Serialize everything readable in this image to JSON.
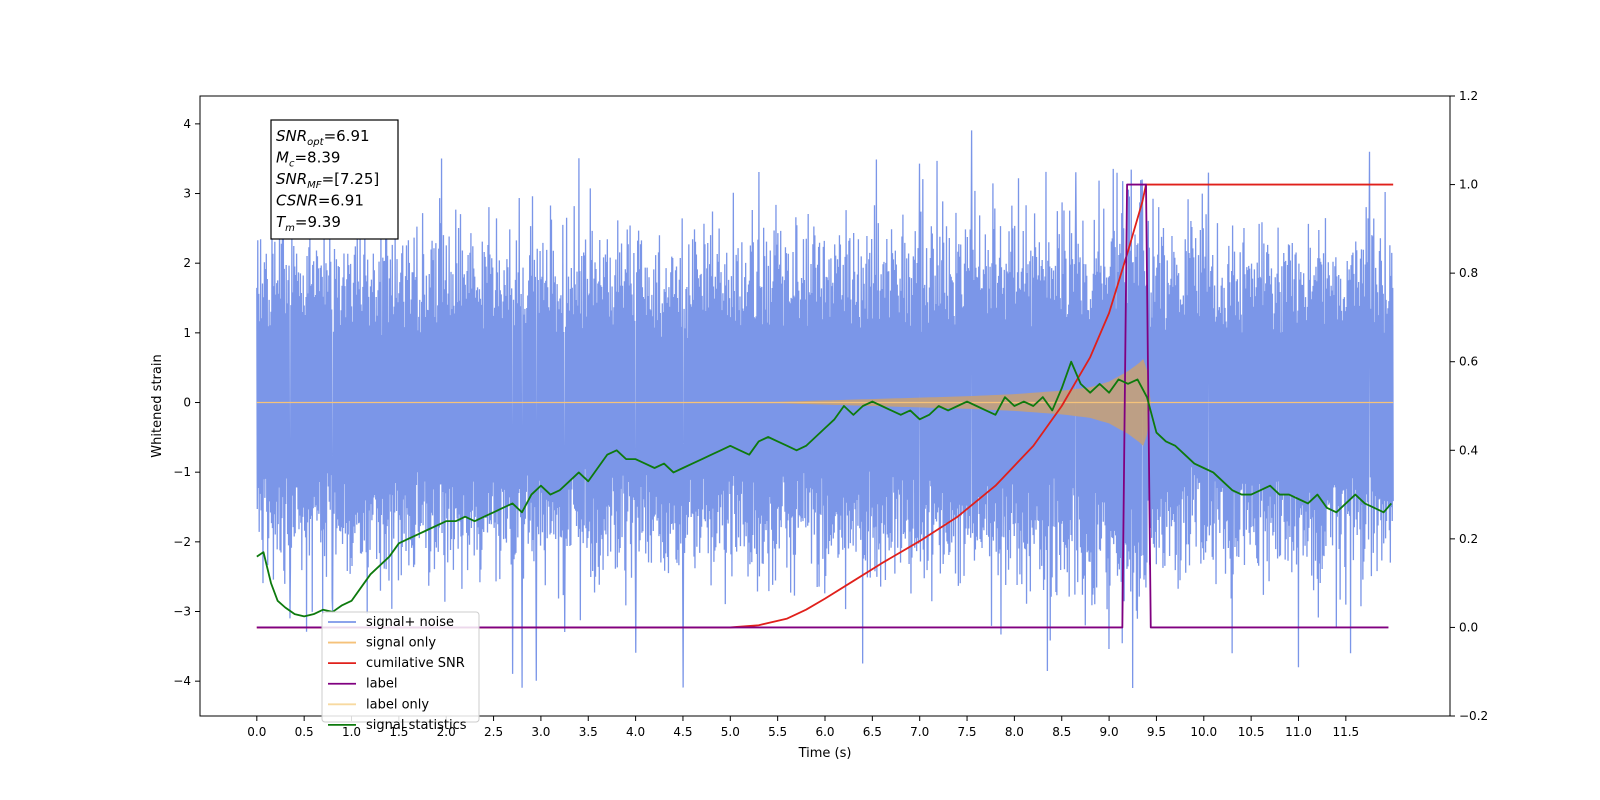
{
  "chart_data": {
    "type": "line",
    "xlabel": "Time (s)",
    "ylabel_left": "Whitened strain",
    "ylabel_right": "",
    "xlim": [
      -0.6,
      12.6
    ],
    "ylim_left": [
      -4.5,
      4.4
    ],
    "ylim_right": [
      -0.2,
      1.2
    ],
    "x_ticks": [
      "0.0",
      "0.5",
      "1.0",
      "1.5",
      "2.0",
      "2.5",
      "3.0",
      "3.5",
      "4.0",
      "4.5",
      "5.0",
      "5.5",
      "6.0",
      "6.5",
      "7.0",
      "7.5",
      "8.0",
      "8.5",
      "9.0",
      "9.5",
      "10.0",
      "10.5",
      "11.0",
      "11.5"
    ],
    "y_ticks_left": [
      "4",
      "3",
      "2",
      "1",
      "0",
      "−1",
      "−2",
      "−3",
      "−4"
    ],
    "y_ticks_right": [
      "1.2",
      "1.0",
      "0.8",
      "0.6",
      "0.4",
      "0.2",
      "0.0",
      "−0.2"
    ],
    "grid": false,
    "legend_location": "lower-left",
    "annotation": {
      "lines": [
        {
          "base": "SNR",
          "sub": "opt",
          "value": "=6.91"
        },
        {
          "base": "M",
          "sub": "c",
          "value": "=8.39"
        },
        {
          "base": "SNR",
          "sub": "MF",
          "value": "=[7.25]"
        },
        {
          "base": "CSNR",
          "sub": "",
          "value": "=6.91"
        },
        {
          "base": "T",
          "sub": "m",
          "value": "=9.39"
        }
      ]
    },
    "series": [
      {
        "name": "signal+ noise",
        "axis": "left",
        "color": "#7b96e8",
        "style": "noise",
        "x_range": [
          0.0,
          12.0
        ],
        "amplitude_typical": 1.8,
        "spikes": [
          [
            0.35,
            -3.1
          ],
          [
            0.8,
            -3.0
          ],
          [
            1.95,
            3.5
          ],
          [
            2.7,
            -3.9
          ],
          [
            2.8,
            -4.1
          ],
          [
            2.95,
            -4.0
          ],
          [
            3.25,
            -3.3
          ],
          [
            3.4,
            3.5
          ],
          [
            4.0,
            -3.6
          ],
          [
            4.5,
            -4.1
          ],
          [
            5.3,
            3.3
          ],
          [
            6.4,
            -3.7
          ],
          [
            7.0,
            3.5
          ],
          [
            7.55,
            4.0
          ],
          [
            8.35,
            -3.7
          ],
          [
            8.65,
            3.5
          ],
          [
            9.25,
            -3.6
          ],
          [
            9.35,
            3.8
          ],
          [
            10.05,
            3.3
          ],
          [
            10.3,
            -3.6
          ],
          [
            11.0,
            -3.8
          ],
          [
            11.55,
            -3.6
          ],
          [
            11.75,
            3.6
          ]
        ]
      },
      {
        "name": "signal only",
        "axis": "left",
        "color": "#f5c27a",
        "fill": "#c4a07a",
        "style": "chirp",
        "envelope_x": [
          0.0,
          5.5,
          6.0,
          6.5,
          7.0,
          7.5,
          8.0,
          8.5,
          8.8,
          9.0,
          9.2,
          9.35,
          9.39,
          9.42,
          12.0
        ],
        "envelope_y": [
          0.0,
          0.01,
          0.03,
          0.05,
          0.07,
          0.09,
          0.12,
          0.17,
          0.22,
          0.3,
          0.45,
          0.6,
          0.7,
          0.0,
          0.0
        ]
      },
      {
        "name": "cumilative SNR",
        "axis": "right",
        "color": "#e0201b",
        "style": "line",
        "x": [
          0.0,
          5.0,
          5.3,
          5.6,
          5.8,
          6.0,
          6.3,
          6.6,
          7.0,
          7.4,
          7.8,
          8.2,
          8.5,
          8.8,
          9.0,
          9.2,
          9.35,
          9.39,
          9.4,
          12.0
        ],
        "y": [
          0.0,
          0.0,
          0.005,
          0.02,
          0.04,
          0.065,
          0.105,
          0.145,
          0.195,
          0.25,
          0.32,
          0.41,
          0.5,
          0.61,
          0.71,
          0.85,
          0.96,
          1.0,
          1.0,
          1.0
        ]
      },
      {
        "name": "label",
        "axis": "right",
        "color": "#800080",
        "style": "line",
        "x": [
          0.0,
          9.14,
          9.19,
          9.39,
          9.44,
          11.95
        ],
        "y": [
          0.0,
          0.0,
          1.0,
          1.0,
          0.0,
          0.0
        ]
      },
      {
        "name": "label only",
        "axis": "right",
        "color": "#f8d9a0",
        "style": "legend-only"
      },
      {
        "name": "signal statistics",
        "axis": "right",
        "color": "#0d7a0d",
        "style": "line",
        "x": [
          0.0,
          0.07,
          0.15,
          0.22,
          0.3,
          0.4,
          0.5,
          0.6,
          0.7,
          0.8,
          0.9,
          1.0,
          1.1,
          1.2,
          1.3,
          1.4,
          1.5,
          1.6,
          1.7,
          1.8,
          1.9,
          2.0,
          2.1,
          2.2,
          2.3,
          2.4,
          2.5,
          2.6,
          2.7,
          2.8,
          2.9,
          3.0,
          3.1,
          3.2,
          3.3,
          3.4,
          3.5,
          3.6,
          3.7,
          3.8,
          3.9,
          4.0,
          4.1,
          4.2,
          4.3,
          4.4,
          4.5,
          4.6,
          4.7,
          4.8,
          4.9,
          5.0,
          5.1,
          5.2,
          5.3,
          5.4,
          5.5,
          5.6,
          5.7,
          5.8,
          5.9,
          6.0,
          6.1,
          6.2,
          6.3,
          6.4,
          6.5,
          6.6,
          6.7,
          6.8,
          6.9,
          7.0,
          7.1,
          7.2,
          7.3,
          7.4,
          7.5,
          7.6,
          7.7,
          7.8,
          7.9,
          8.0,
          8.1,
          8.2,
          8.3,
          8.4,
          8.5,
          8.6,
          8.7,
          8.8,
          8.9,
          9.0,
          9.1,
          9.2,
          9.3,
          9.4,
          9.5,
          9.6,
          9.7,
          9.8,
          9.9,
          10.0,
          10.1,
          10.2,
          10.3,
          10.4,
          10.5,
          10.6,
          10.7,
          10.8,
          10.9,
          11.0,
          11.1,
          11.2,
          11.3,
          11.4,
          11.5,
          11.6,
          11.7,
          11.8,
          11.9,
          11.98
        ],
        "y": [
          0.16,
          0.17,
          0.1,
          0.06,
          0.045,
          0.03,
          0.025,
          0.03,
          0.04,
          0.035,
          0.05,
          0.06,
          0.09,
          0.12,
          0.14,
          0.16,
          0.19,
          0.2,
          0.21,
          0.22,
          0.23,
          0.24,
          0.24,
          0.25,
          0.24,
          0.25,
          0.26,
          0.27,
          0.28,
          0.26,
          0.3,
          0.32,
          0.3,
          0.31,
          0.33,
          0.35,
          0.33,
          0.36,
          0.39,
          0.4,
          0.38,
          0.38,
          0.37,
          0.36,
          0.37,
          0.35,
          0.36,
          0.37,
          0.38,
          0.39,
          0.4,
          0.41,
          0.4,
          0.39,
          0.42,
          0.43,
          0.42,
          0.41,
          0.4,
          0.41,
          0.43,
          0.45,
          0.47,
          0.5,
          0.48,
          0.5,
          0.51,
          0.5,
          0.49,
          0.48,
          0.49,
          0.47,
          0.48,
          0.5,
          0.49,
          0.5,
          0.51,
          0.5,
          0.49,
          0.48,
          0.52,
          0.5,
          0.51,
          0.5,
          0.52,
          0.49,
          0.54,
          0.6,
          0.55,
          0.53,
          0.55,
          0.53,
          0.56,
          0.55,
          0.56,
          0.52,
          0.44,
          0.42,
          0.41,
          0.39,
          0.37,
          0.36,
          0.35,
          0.33,
          0.31,
          0.3,
          0.3,
          0.31,
          0.32,
          0.3,
          0.3,
          0.29,
          0.28,
          0.3,
          0.27,
          0.26,
          0.28,
          0.3,
          0.28,
          0.27,
          0.26,
          0.28
        ]
      }
    ]
  }
}
